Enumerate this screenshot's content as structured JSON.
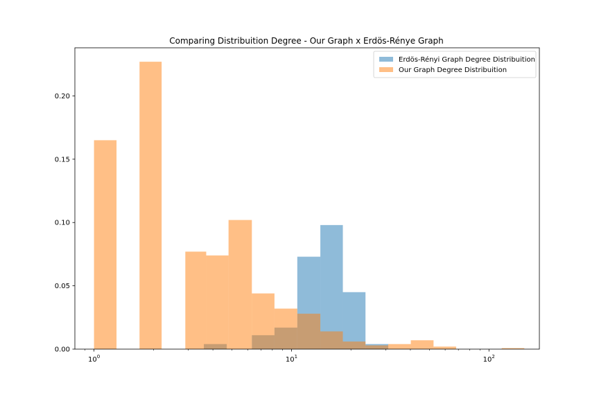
{
  "chart_data": {
    "type": "bar",
    "title": "Comparing Distribuition Degree - Our Graph x Erdös-Rénye Graph",
    "xlabel": "",
    "ylabel": "",
    "x_scale": "log",
    "xlim": [
      0.8,
      180
    ],
    "ylim": [
      0,
      0.238
    ],
    "y_ticks": [
      0.0,
      0.05,
      0.1,
      0.15,
      0.2
    ],
    "y_tick_labels": [
      "0.00",
      "0.05",
      "0.10",
      "0.15",
      "0.20"
    ],
    "x_ticks": [
      1,
      10,
      100
    ],
    "x_tick_labels": [
      {
        "base": "10",
        "exp": "0"
      },
      {
        "base": "10",
        "exp": "1"
      },
      {
        "base": "10",
        "exp": "2"
      }
    ],
    "legend_position": "top-right",
    "grid": false,
    "series": [
      {
        "name": "Erdös-Rényi Graph Degree Distribuition",
        "color": "#1f77b4",
        "alpha": 0.5,
        "bins": [
          {
            "x0": 3.6,
            "x1": 4.7,
            "value": 0.004
          },
          {
            "x0": 6.3,
            "x1": 8.2,
            "value": 0.011
          },
          {
            "x0": 8.2,
            "x1": 10.7,
            "value": 0.017
          },
          {
            "x0": 10.7,
            "x1": 14.0,
            "value": 0.073
          },
          {
            "x0": 14.0,
            "x1": 18.2,
            "value": 0.098
          },
          {
            "x0": 18.2,
            "x1": 23.7,
            "value": 0.045
          },
          {
            "x0": 23.7,
            "x1": 30.9,
            "value": 0.004
          }
        ]
      },
      {
        "name": "Our Graph Degree Distribuition",
        "color": "#ff7f0e",
        "alpha": 0.5,
        "bins": [
          {
            "x0": 1.0,
            "x1": 1.3,
            "value": 0.165
          },
          {
            "x0": 1.7,
            "x1": 2.2,
            "value": 0.227
          },
          {
            "x0": 2.9,
            "x1": 3.7,
            "value": 0.077
          },
          {
            "x0": 3.7,
            "x1": 4.8,
            "value": 0.074
          },
          {
            "x0": 4.8,
            "x1": 6.3,
            "value": 0.102
          },
          {
            "x0": 6.3,
            "x1": 8.2,
            "value": 0.044
          },
          {
            "x0": 8.2,
            "x1": 10.7,
            "value": 0.032
          },
          {
            "x0": 10.7,
            "x1": 14.0,
            "value": 0.028
          },
          {
            "x0": 14.0,
            "x1": 18.2,
            "value": 0.014
          },
          {
            "x0": 18.2,
            "x1": 23.7,
            "value": 0.006
          },
          {
            "x0": 23.7,
            "x1": 30.9,
            "value": 0.003
          },
          {
            "x0": 30.9,
            "x1": 40.2,
            "value": 0.004
          },
          {
            "x0": 40.2,
            "x1": 52.4,
            "value": 0.007
          },
          {
            "x0": 52.4,
            "x1": 68.2,
            "value": 0.002
          },
          {
            "x0": 116.0,
            "x1": 151.0,
            "value": 0.0008
          }
        ]
      }
    ]
  }
}
